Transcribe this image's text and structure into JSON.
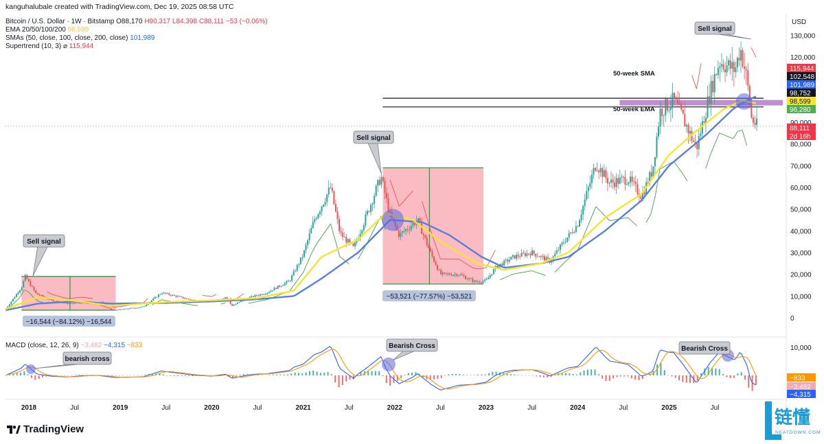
{
  "header": {
    "credit": "kanguhalubale created with TradingView.com, Dec 19, 2025 08:58 UTC",
    "symbol": "Bitcoin / U.S. Dollar · 1W · Bitstamp",
    "ohlc": {
      "o": "O88,170",
      "h": "H90,317",
      "l": "L84,398",
      "c": "C88,111",
      "chg": "−53 (−0.06%)"
    },
    "ema_label": "EMA 20/50/100/200",
    "ema_value": "98,599",
    "sma_label": "SMAs (50, close, 100, close, 200, close)",
    "sma_value": "101,989",
    "st_label": "Supertrend (10, 3)",
    "st_symbol": "⌀",
    "st_value": "115,944",
    "macd_label": "MACD (close, 12, 26, 9)",
    "macd_hist": "−3,482",
    "macd_line": "−4,315",
    "macd_signal": "−833"
  },
  "currency": "USD",
  "brand": {
    "name": "TradingView",
    "watermark": "链懂",
    "watermark_sub": "NEATDOWN.COM"
  },
  "colors": {
    "green": "#26a69a",
    "red": "#ef5350",
    "ema": "#f5e52f",
    "sma": "#5b7fd6",
    "macd": "#2962ff",
    "signal": "#ff9800",
    "zone": "#f8a5ad",
    "band": "#b57bc8"
  },
  "chart_data": {
    "type": "candlestick",
    "title": "Bitcoin / U.S. Dollar · 1W · Bitstamp",
    "x_ticks": [
      "2018",
      "Jul",
      "2019",
      "Jul",
      "2020",
      "Jul",
      "2021",
      "Jul",
      "2022",
      "Jul",
      "2023",
      "Jul",
      "2024",
      "Jul",
      "2025",
      "Jul"
    ],
    "y_ticks": [
      0,
      10000,
      20000,
      30000,
      40000,
      50000,
      60000,
      70000,
      80000,
      90000,
      100000,
      110000,
      120000,
      130000
    ],
    "ylim": [
      0,
      135000
    ],
    "price_path": [
      [
        2017.75,
        4200
      ],
      [
        2017.92,
        14000
      ],
      [
        2017.96,
        19000
      ],
      [
        2018.08,
        11000
      ],
      [
        2018.25,
        8000
      ],
      [
        2018.42,
        6500
      ],
      [
        2018.58,
        7000
      ],
      [
        2018.75,
        6400
      ],
      [
        2018.92,
        3500
      ],
      [
        2019.0,
        3800
      ],
      [
        2019.25,
        5000
      ],
      [
        2019.45,
        11500
      ],
      [
        2019.6,
        10000
      ],
      [
        2019.8,
        8000
      ],
      [
        2020.0,
        7200
      ],
      [
        2020.15,
        9500
      ],
      [
        2020.22,
        5500
      ],
      [
        2020.4,
        9200
      ],
      [
        2020.6,
        11500
      ],
      [
        2020.85,
        17000
      ],
      [
        2021.0,
        29000
      ],
      [
        2021.12,
        45000
      ],
      [
        2021.3,
        60000
      ],
      [
        2021.4,
        39000
      ],
      [
        2021.55,
        32000
      ],
      [
        2021.7,
        48000
      ],
      [
        2021.85,
        65000
      ],
      [
        2021.95,
        47000
      ],
      [
        2022.05,
        38000
      ],
      [
        2022.25,
        45000
      ],
      [
        2022.4,
        29000
      ],
      [
        2022.5,
        20000
      ],
      [
        2022.7,
        20000
      ],
      [
        2022.88,
        16500
      ],
      [
        2023.0,
        17000
      ],
      [
        2023.1,
        23000
      ],
      [
        2023.3,
        28000
      ],
      [
        2023.5,
        30000
      ],
      [
        2023.7,
        26000
      ],
      [
        2023.85,
        35000
      ],
      [
        2024.0,
        43000
      ],
      [
        2024.2,
        71000
      ],
      [
        2024.35,
        62000
      ],
      [
        2024.55,
        64000
      ],
      [
        2024.7,
        56000
      ],
      [
        2024.82,
        68000
      ],
      [
        2024.9,
        95000
      ],
      [
        2025.05,
        100000
      ],
      [
        2025.15,
        92000
      ],
      [
        2025.3,
        78000
      ],
      [
        2025.45,
        104000
      ],
      [
        2025.55,
        118000
      ],
      [
        2025.72,
        114000
      ],
      [
        2025.78,
        124000
      ],
      [
        2025.85,
        110000
      ],
      [
        2025.9,
        92000
      ],
      [
        2025.96,
        88111
      ]
    ],
    "ema": [
      [
        2017.75,
        4000
      ],
      [
        2018.1,
        9500
      ],
      [
        2018.5,
        7800
      ],
      [
        2018.9,
        5500
      ],
      [
        2019.5,
        7200
      ],
      [
        2020.0,
        8000
      ],
      [
        2020.5,
        9000
      ],
      [
        2020.9,
        12500
      ],
      [
        2021.2,
        28000
      ],
      [
        2021.6,
        36000
      ],
      [
        2021.9,
        48000
      ],
      [
        2022.2,
        45000
      ],
      [
        2022.5,
        35000
      ],
      [
        2022.9,
        25000
      ],
      [
        2023.2,
        22000
      ],
      [
        2023.6,
        25000
      ],
      [
        2023.9,
        30000
      ],
      [
        2024.3,
        46000
      ],
      [
        2024.7,
        57000
      ],
      [
        2025.0,
        75000
      ],
      [
        2025.3,
        86000
      ],
      [
        2025.6,
        96000
      ],
      [
        2025.8,
        100000
      ],
      [
        2025.96,
        98599
      ]
    ],
    "sma": [
      [
        2017.75,
        3500
      ],
      [
        2018.1,
        6500
      ],
      [
        2018.5,
        7500
      ],
      [
        2018.9,
        6500
      ],
      [
        2019.5,
        6800
      ],
      [
        2020.0,
        7500
      ],
      [
        2020.5,
        8500
      ],
      [
        2020.9,
        10000
      ],
      [
        2021.2,
        18000
      ],
      [
        2021.6,
        30000
      ],
      [
        2021.95,
        45000
      ],
      [
        2022.3,
        44000
      ],
      [
        2022.6,
        38000
      ],
      [
        2022.95,
        28000
      ],
      [
        2023.2,
        23000
      ],
      [
        2023.6,
        25000
      ],
      [
        2023.9,
        28000
      ],
      [
        2024.3,
        40000
      ],
      [
        2024.7,
        54000
      ],
      [
        2025.0,
        70000
      ],
      [
        2025.4,
        84000
      ],
      [
        2025.7,
        96000
      ],
      [
        2025.85,
        100000
      ],
      [
        2025.96,
        101989
      ]
    ],
    "supertrend_value": 115944,
    "price_labels": [
      "115,944",
      "102,548",
      "101,989",
      "98,752",
      "98,599",
      "96,280",
      "88,111"
    ],
    "countdown": "2d 16h",
    "annotations": {
      "sell_2018": "Sell signal",
      "sell_2021": "Sell signal",
      "sell_2025": "Sell signal",
      "sma_label": "50-week SMA",
      "ema_label": "50-week EMA",
      "drop_2018": "−16,544 (−84.12%) −16,544",
      "drop_2022": "−53,521 (−77.57%) −53,521"
    },
    "macd": {
      "title": "MACD (close, 12, 26, 9)",
      "y_ticks": [
        10000,
        0
      ],
      "labels": [
        "−833",
        "−3,482",
        "−4,315"
      ],
      "crosses": [
        "bearish cross",
        "Bearish Cross",
        "Bearish Cross"
      ]
    }
  }
}
